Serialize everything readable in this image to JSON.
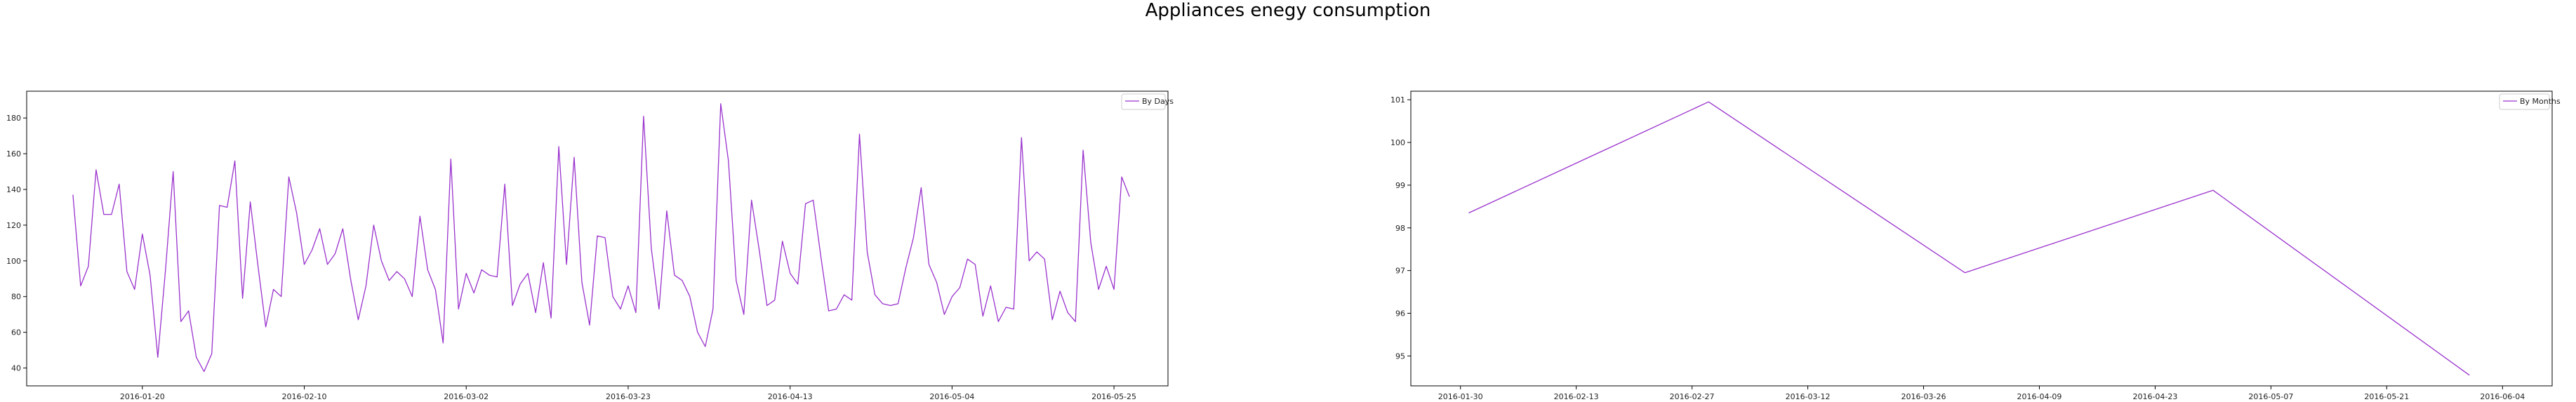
{
  "figure": {
    "title": "Appliances enegy consumption",
    "line_color": "#9a32cd"
  },
  "chart_data": [
    {
      "type": "line",
      "legend_location": "top-right",
      "grid": false,
      "series": [
        {
          "name": "By Days",
          "color": "#9a32cd",
          "x": [
            "2016-01-11",
            "2016-01-12",
            "2016-01-13",
            "2016-01-14",
            "2016-01-15",
            "2016-01-16",
            "2016-01-17",
            "2016-01-18",
            "2016-01-19",
            "2016-01-20",
            "2016-01-21",
            "2016-01-22",
            "2016-01-23",
            "2016-01-24",
            "2016-01-25",
            "2016-01-26",
            "2016-01-27",
            "2016-01-28",
            "2016-01-29",
            "2016-01-30",
            "2016-01-31",
            "2016-02-01",
            "2016-02-02",
            "2016-02-03",
            "2016-02-04",
            "2016-02-05",
            "2016-02-06",
            "2016-02-07",
            "2016-02-08",
            "2016-02-09",
            "2016-02-10",
            "2016-02-11",
            "2016-02-12",
            "2016-02-13",
            "2016-02-14",
            "2016-02-15",
            "2016-02-16",
            "2016-02-17",
            "2016-02-18",
            "2016-02-19",
            "2016-02-20",
            "2016-02-21",
            "2016-02-22",
            "2016-02-23",
            "2016-02-24",
            "2016-02-25",
            "2016-02-26",
            "2016-02-27",
            "2016-02-28",
            "2016-02-29",
            "2016-03-01",
            "2016-03-02",
            "2016-03-03",
            "2016-03-04",
            "2016-03-05",
            "2016-03-06",
            "2016-03-07",
            "2016-03-08",
            "2016-03-09",
            "2016-03-10",
            "2016-03-11",
            "2016-03-12",
            "2016-03-13",
            "2016-03-14",
            "2016-03-15",
            "2016-03-16",
            "2016-03-17",
            "2016-03-18",
            "2016-03-19",
            "2016-03-20",
            "2016-03-21",
            "2016-03-22",
            "2016-03-23",
            "2016-03-24",
            "2016-03-25",
            "2016-03-26",
            "2016-03-27",
            "2016-03-28",
            "2016-03-29",
            "2016-03-30",
            "2016-03-31",
            "2016-04-01",
            "2016-04-02",
            "2016-04-03",
            "2016-04-04",
            "2016-04-05",
            "2016-04-06",
            "2016-04-07",
            "2016-04-08",
            "2016-04-09",
            "2016-04-10",
            "2016-04-11",
            "2016-04-12",
            "2016-04-13",
            "2016-04-14",
            "2016-04-15",
            "2016-04-16",
            "2016-04-17",
            "2016-04-18",
            "2016-04-19",
            "2016-04-20",
            "2016-04-21",
            "2016-04-22",
            "2016-04-23",
            "2016-04-24",
            "2016-04-25",
            "2016-04-26",
            "2016-04-27",
            "2016-04-28",
            "2016-04-29",
            "2016-04-30",
            "2016-05-01",
            "2016-05-02",
            "2016-05-03",
            "2016-05-04",
            "2016-05-05",
            "2016-05-06",
            "2016-05-07",
            "2016-05-08",
            "2016-05-09",
            "2016-05-10",
            "2016-05-11",
            "2016-05-12",
            "2016-05-13",
            "2016-05-14",
            "2016-05-15",
            "2016-05-16",
            "2016-05-17",
            "2016-05-18",
            "2016-05-19",
            "2016-05-20",
            "2016-05-21",
            "2016-05-22",
            "2016-05-23",
            "2016-05-24",
            "2016-05-25",
            "2016-05-26",
            "2016-05-27"
          ],
          "values": [
            137,
            86,
            97,
            151,
            126,
            126,
            143,
            94,
            84,
            115,
            92,
            46,
            95,
            150,
            66,
            72,
            46,
            38,
            48,
            131,
            130,
            156,
            79,
            133,
            97,
            63,
            84,
            80,
            147,
            127,
            98,
            106,
            118,
            98,
            104,
            118,
            90,
            67,
            86,
            120,
            100,
            89,
            94,
            90,
            80,
            125,
            95,
            84,
            54,
            157,
            73,
            93,
            82,
            95,
            92,
            91,
            143,
            75,
            87,
            93,
            71,
            99,
            68,
            164,
            98,
            158,
            88,
            64,
            114,
            113,
            80,
            73,
            86,
            71,
            181,
            107,
            73,
            128,
            92,
            89,
            80,
            60,
            52,
            73,
            188,
            156,
            89,
            70,
            134,
            106,
            75,
            78,
            111,
            93,
            87,
            132,
            134,
            102,
            72,
            73,
            81,
            78,
            171,
            105,
            81,
            76,
            75,
            76,
            96,
            113,
            141,
            98,
            88,
            70,
            80,
            85,
            101,
            98,
            69,
            86,
            66,
            74,
            73,
            169,
            100,
            105,
            101,
            67,
            83,
            71,
            66,
            162,
            110,
            84,
            97,
            84,
            147,
            136
          ]
        }
      ],
      "x_ticks": [
        "2016-01-20",
        "2016-02-10",
        "2016-03-02",
        "2016-03-23",
        "2016-04-13",
        "2016-05-04",
        "2016-05-25"
      ],
      "y_ticks": [
        40,
        60,
        80,
        100,
        120,
        140,
        160,
        180
      ],
      "xlim": [
        "2016-01-05",
        "2016-06-01"
      ],
      "ylim": [
        30,
        195
      ]
    },
    {
      "type": "line",
      "legend_location": "top-right",
      "grid": false,
      "series": [
        {
          "name": "By Months",
          "color": "#9a32cd",
          "x": [
            "2016-01-31",
            "2016-02-29",
            "2016-03-31",
            "2016-04-30",
            "2016-05-31"
          ],
          "values": [
            98.35,
            100.95,
            96.95,
            98.88,
            94.55
          ]
        }
      ],
      "x_ticks": [
        "2016-01-30",
        "2016-02-13",
        "2016-02-27",
        "2016-03-12",
        "2016-03-26",
        "2016-04-09",
        "2016-04-23",
        "2016-05-07",
        "2016-05-21",
        "2016-06-04"
      ],
      "y_ticks": [
        95,
        96,
        97,
        98,
        99,
        100,
        101
      ],
      "xlim": [
        "2016-01-24",
        "2016-06-10"
      ],
      "ylim": [
        94.3,
        101.2
      ]
    }
  ]
}
